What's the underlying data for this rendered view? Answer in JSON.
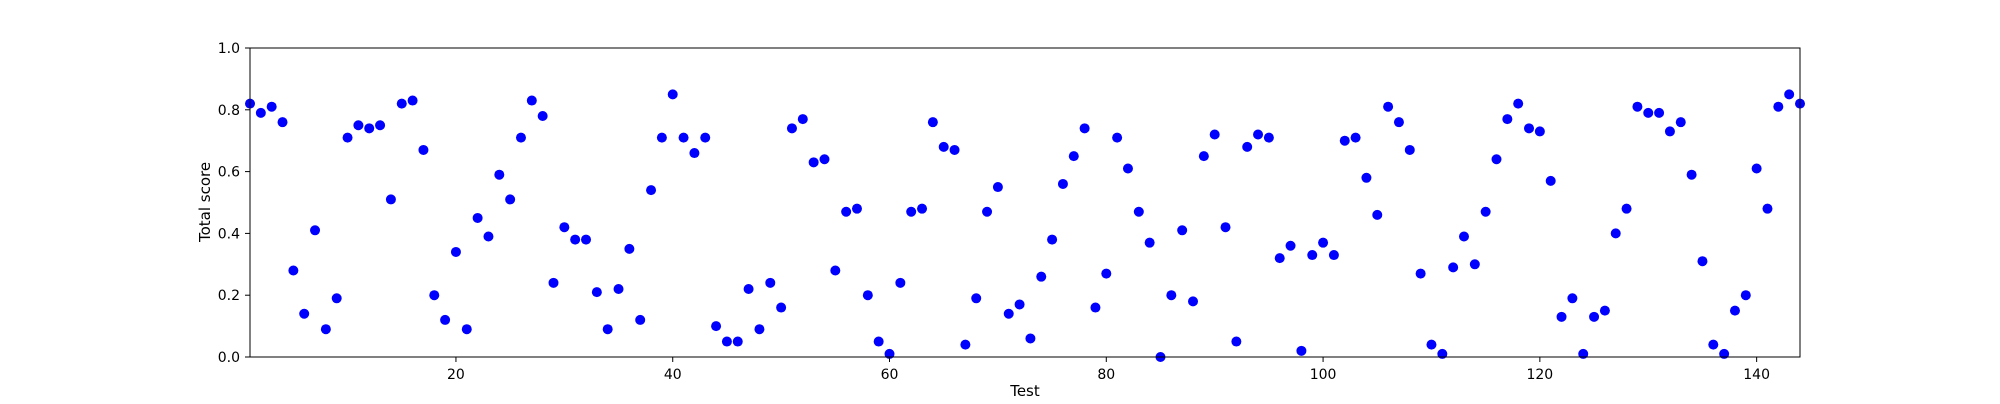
{
  "chart_data": {
    "type": "scatter",
    "xlabel": "Test",
    "ylabel": "Total score",
    "xlim": [
      1,
      144
    ],
    "ylim": [
      0,
      1.0
    ],
    "xticks": [
      20,
      40,
      60,
      80,
      100,
      120,
      140
    ],
    "yticks": [
      0.0,
      0.2,
      0.4,
      0.6,
      0.8,
      1.0
    ],
    "ytick_labels": [
      "0.0",
      "0.2",
      "0.4",
      "0.6",
      "0.8",
      "1.0"
    ],
    "grid": false,
    "marker_color": "#0000ff",
    "series": [
      {
        "x": [
          1,
          2,
          3,
          4,
          5,
          6,
          7,
          8,
          9,
          10,
          11,
          12,
          13,
          14,
          15,
          16,
          17,
          18,
          19,
          20,
          21,
          22,
          23,
          24,
          25,
          26,
          27,
          28,
          29,
          30,
          31,
          32,
          33,
          34,
          35,
          36,
          37,
          38,
          39,
          40,
          41,
          42,
          43,
          44,
          45,
          46,
          47,
          48,
          49,
          50,
          51,
          52,
          53,
          54,
          55,
          56,
          57,
          58,
          59,
          60,
          61,
          62,
          63,
          64,
          65,
          66,
          67,
          68,
          69,
          70,
          71,
          72,
          73,
          74,
          75,
          76,
          77,
          78,
          79,
          80,
          81,
          82,
          83,
          84,
          85,
          86,
          87,
          88,
          89,
          90,
          91,
          92,
          93,
          94,
          95,
          96,
          97,
          98,
          99,
          100,
          101,
          102,
          103,
          104,
          105,
          106,
          107,
          108,
          109,
          110,
          111,
          112,
          113,
          114,
          115,
          116,
          117,
          118,
          119,
          120,
          121,
          122,
          123,
          124,
          125,
          126,
          127,
          128,
          129,
          130,
          131,
          132,
          133,
          134,
          135,
          136,
          137,
          138,
          139,
          140,
          141,
          142,
          143,
          144
        ],
        "y": [
          0.82,
          0.79,
          0.81,
          0.76,
          0.28,
          0.14,
          0.41,
          0.09,
          0.19,
          0.71,
          0.75,
          0.74,
          0.75,
          0.51,
          0.82,
          0.83,
          0.67,
          0.2,
          0.12,
          0.34,
          0.09,
          0.45,
          0.39,
          0.59,
          0.51,
          0.71,
          0.83,
          0.78,
          0.24,
          0.42,
          0.38,
          0.38,
          0.21,
          0.09,
          0.22,
          0.35,
          0.12,
          0.54,
          0.71,
          0.85,
          0.71,
          0.66,
          0.71,
          0.1,
          0.05,
          0.05,
          0.22,
          0.09,
          0.24,
          0.16,
          0.74,
          0.77,
          0.63,
          0.64,
          0.28,
          0.47,
          0.48,
          0.2,
          0.05,
          0.01,
          0.24,
          0.47,
          0.48,
          0.76,
          0.68,
          0.67,
          0.04,
          0.19,
          0.47,
          0.55,
          0.14,
          0.17,
          0.06,
          0.26,
          0.38,
          0.56,
          0.65,
          0.74,
          0.16,
          0.27,
          0.71,
          0.61,
          0.47,
          0.37,
          0.0,
          0.2,
          0.41,
          0.18,
          0.65,
          0.72,
          0.42,
          0.05,
          0.68,
          0.72,
          0.71,
          0.32,
          0.36,
          0.02,
          0.33,
          0.37,
          0.33,
          0.7,
          0.71,
          0.58,
          0.46,
          0.81,
          0.76,
          0.67,
          0.27,
          0.04,
          0.01,
          0.29,
          0.39,
          0.3,
          0.47,
          0.64,
          0.77,
          0.82,
          0.74,
          0.73,
          0.57,
          0.13,
          0.19,
          0.01,
          0.13,
          0.15,
          0.4,
          0.48,
          0.81,
          0.79,
          0.79,
          0.73,
          0.76,
          0.59,
          0.31,
          0.04,
          0.01,
          0.15,
          0.2,
          0.61,
          0.48,
          0.81,
          0.85,
          0.82
        ]
      }
    ]
  }
}
